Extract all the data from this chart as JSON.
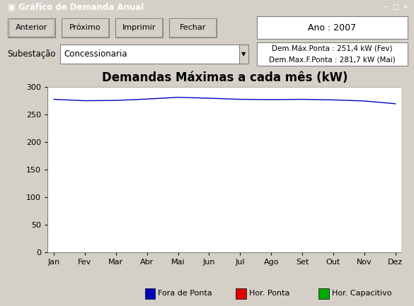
{
  "title": "Demandas Máximas a cada mês (kW)",
  "months": [
    "Jan",
    "Fev",
    "Mar",
    "Abr",
    "Mai",
    "Jun",
    "Jul",
    "Ago",
    "Set",
    "Out",
    "Nov",
    "Dez"
  ],
  "fora_de_ponta": [
    278,
    275.5,
    276,
    278.5,
    281.7,
    280,
    278,
    277.5,
    278,
    277,
    275,
    270
  ],
  "ylim": [
    0,
    300
  ],
  "yticks": [
    0,
    50,
    100,
    150,
    200,
    250,
    300
  ],
  "line_color_fora": "#0000bb",
  "line_color_ponta": "#dd0000",
  "line_color_cap": "#00aa00",
  "legend_fora": "Fora de Ponta",
  "legend_ponta": "Hor. Ponta",
  "legend_cap": "Hor. Capacitivo",
  "bg_main": "#d4d0c8",
  "bg_plot": "#ffffff",
  "bg_button": "#d4d0c8",
  "title_bar_color": "#0a246a",
  "title_fontsize": 12,
  "axis_fontsize": 8,
  "window_title": "Gráfico de Demanda Anual",
  "ano_label": "Ano : 2007",
  "dem_max_ponta": "Dem.Máx.Ponta : 251,4 kW (Fev)",
  "dem_max_fponta": "Dem.Max.F.Ponta : 281,7 kW (Mai)",
  "subestacao_label": "Subestação",
  "subestacao_value": "Concessionaria",
  "btn_labels": [
    "Anterior",
    "Próximo",
    "Imprimir",
    "Fechar"
  ],
  "hline_color": "#b0b0b0"
}
